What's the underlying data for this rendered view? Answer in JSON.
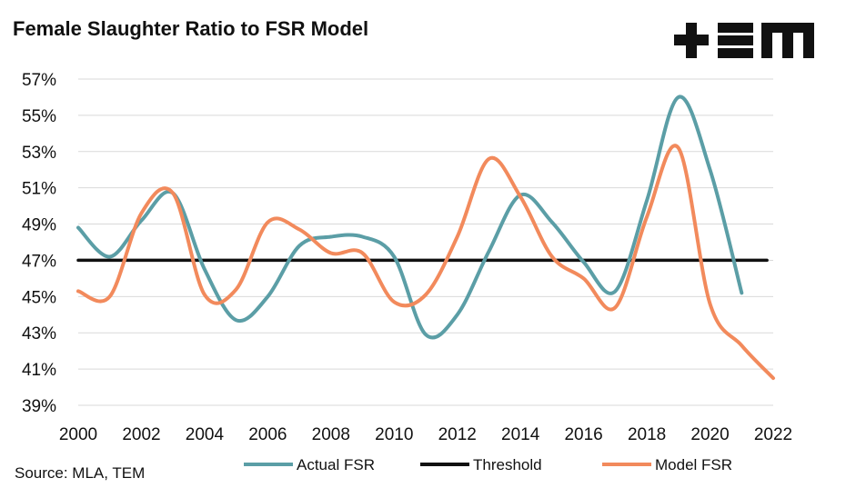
{
  "chart_data": {
    "type": "line",
    "title": "Female Slaughter Ratio to FSR Model",
    "source": "Source: MLA, TEM",
    "logo_text": "TEM",
    "xlabel": "",
    "ylabel": "",
    "xlim": [
      2000,
      2022
    ],
    "ylim": [
      39,
      57
    ],
    "x_ticks": [
      2000,
      2002,
      2004,
      2006,
      2008,
      2010,
      2012,
      2014,
      2016,
      2018,
      2020,
      2022
    ],
    "x_tick_labels": [
      "2000",
      "2002",
      "2004",
      "2006",
      "2008",
      "2010",
      "2012",
      "2014",
      "2016",
      "2018",
      "2020",
      "2022"
    ],
    "y_ticks": [
      39,
      41,
      43,
      45,
      47,
      49,
      51,
      53,
      55,
      57
    ],
    "y_tick_labels": [
      "39%",
      "41%",
      "43%",
      "45%",
      "47%",
      "49%",
      "51%",
      "53%",
      "55%",
      "57%"
    ],
    "grid": true,
    "legend_position": "bottom",
    "series": [
      {
        "name": "Actual FSR",
        "color": "#5b9ea6",
        "x": [
          2000,
          2001,
          2002,
          2003,
          2004,
          2005,
          2006,
          2007,
          2008,
          2009,
          2010,
          2011,
          2012,
          2013,
          2014,
          2015,
          2016,
          2017,
          2018,
          2019,
          2020,
          2021
        ],
        "values": [
          48.8,
          47.2,
          49.2,
          50.7,
          46.5,
          43.7,
          45.0,
          47.8,
          48.3,
          48.3,
          47.2,
          42.9,
          44.0,
          47.5,
          50.6,
          49.1,
          46.9,
          45.3,
          50.3,
          56.0,
          52.0,
          45.2
        ]
      },
      {
        "name": "Threshold",
        "color": "#111111",
        "x": [
          2000,
          2021.8
        ],
        "values": [
          47,
          47
        ]
      },
      {
        "name": "Model FSR",
        "color": "#f28a5c",
        "x": [
          2000,
          2001,
          2002,
          2003,
          2004,
          2005,
          2006,
          2007,
          2008,
          2009,
          2010,
          2011,
          2012,
          2013,
          2014,
          2015,
          2016,
          2017,
          2018,
          2019,
          2020,
          2021,
          2022
        ],
        "values": [
          45.3,
          45.0,
          49.6,
          50.7,
          45.1,
          45.4,
          49.1,
          48.7,
          47.4,
          47.4,
          44.7,
          45.1,
          48.3,
          52.6,
          50.5,
          47.2,
          46.0,
          44.4,
          49.4,
          53.2,
          44.6,
          42.3,
          40.5
        ]
      }
    ]
  }
}
